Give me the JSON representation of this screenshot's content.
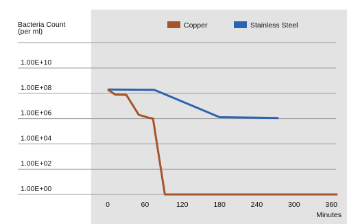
{
  "chart_data": {
    "type": "line",
    "title": "",
    "ylabel_lines": [
      "Bacteria Count",
      "(per ml)"
    ],
    "xlabel": "Minutes",
    "y_scale": "log",
    "y_tick_labels": [
      "1.00E+10",
      "1.00E+08",
      "1.00E+06",
      "1.00E+04",
      "1.00E+02",
      "1.00E+00"
    ],
    "y_ticks": [
      10000000000.0,
      100000000.0,
      1000000.0,
      10000.0,
      100.0,
      1
    ],
    "x_tick_labels": [
      "0",
      "60",
      "120",
      "180",
      "240",
      "300",
      "360"
    ],
    "x_ticks": [
      0,
      60,
      120,
      180,
      240,
      300,
      360
    ],
    "xlim": [
      0,
      370
    ],
    "legend_position": "top",
    "grid": "horizontal",
    "plot_background": "#e3e3e3",
    "series": [
      {
        "name": "Copper",
        "color": "#a6552a",
        "x": [
          0,
          12,
          30,
          50,
          65,
          73,
          92,
          370
        ],
        "y": [
          200000000.0,
          80000000.0,
          75000000.0,
          2000000.0,
          1200000.0,
          1000000.0,
          1,
          1
        ]
      },
      {
        "name": "Stainless Steel",
        "color": "#2b64b0",
        "x": [
          0,
          75,
          180,
          275
        ],
        "y": [
          200000000.0,
          190000000.0,
          1300000.0,
          1100000.0
        ]
      }
    ]
  }
}
